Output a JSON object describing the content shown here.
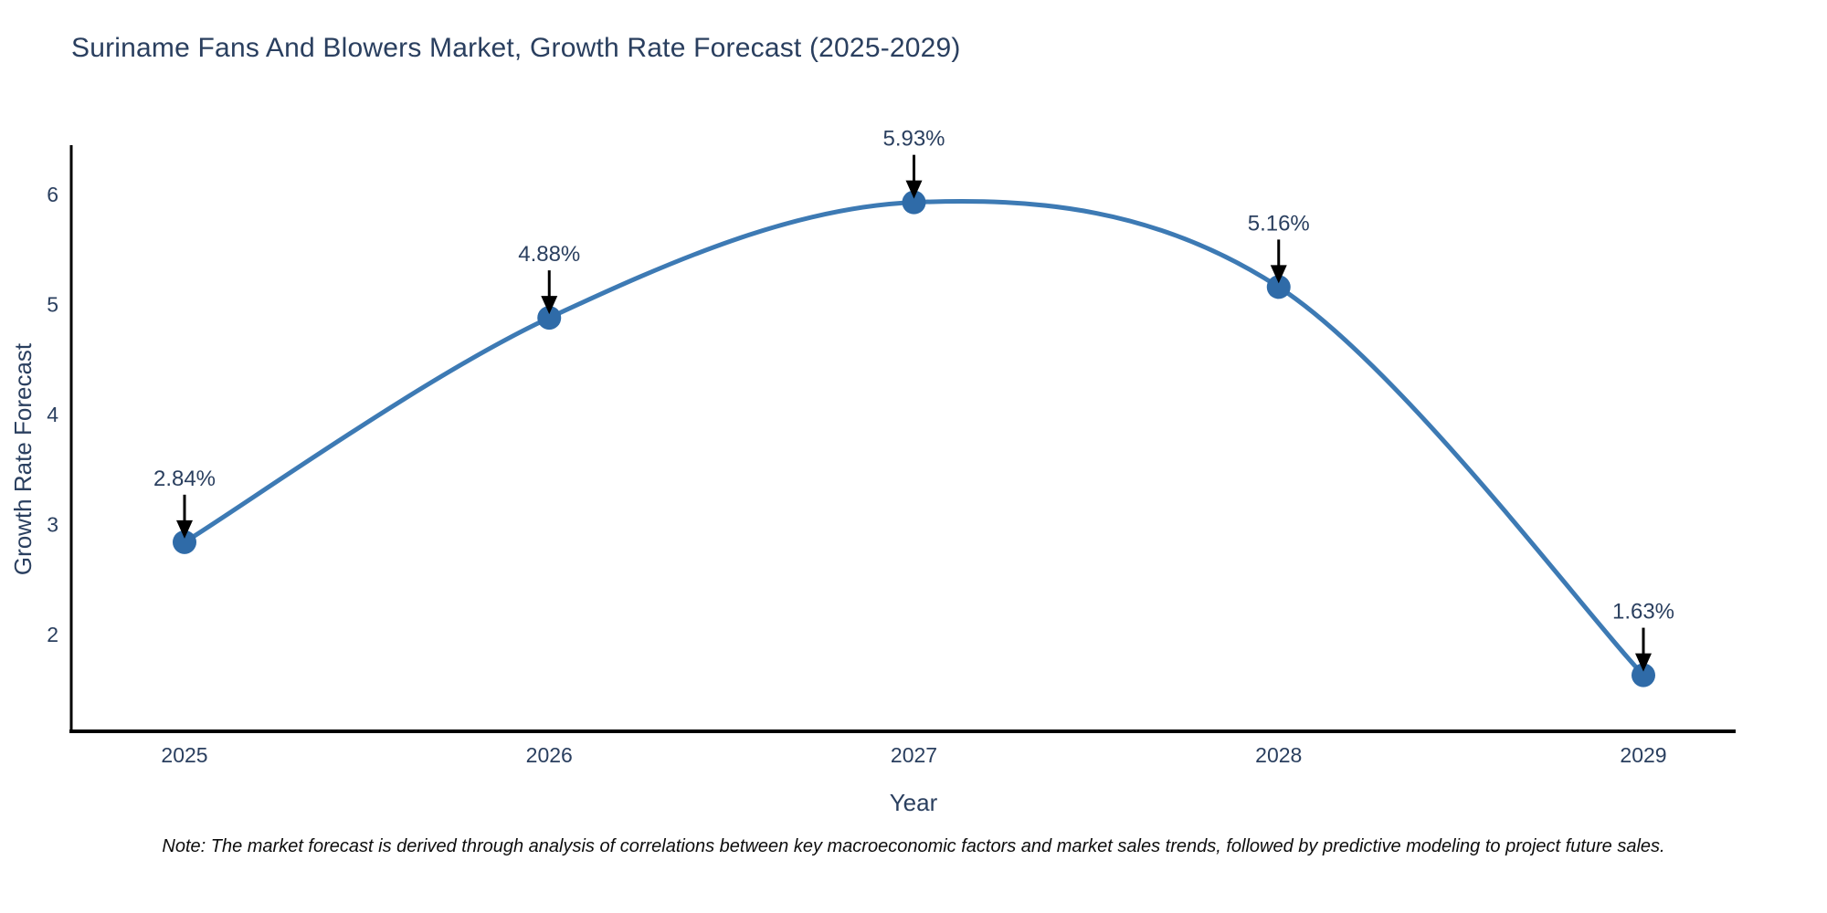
{
  "header": {
    "title": "Suriname Fans And Blowers Market, Growth Rate Forecast (2025-2029)"
  },
  "chart_data": {
    "type": "line",
    "line_shape": "spline",
    "categories": [
      "2025",
      "2026",
      "2027",
      "2028",
      "2029"
    ],
    "values": [
      2.84,
      4.88,
      5.93,
      5.16,
      1.63
    ],
    "point_labels": [
      "2.84%",
      "4.88%",
      "5.93%",
      "5.16%",
      "1.63%"
    ],
    "title": "Suriname Fans And Blowers Market, Growth Rate Forecast (2025-2029)",
    "xlabel": "Year",
    "ylabel": "Growth Rate Forecast",
    "yticks": [
      2,
      3,
      4,
      5,
      6
    ],
    "ylim": [
      1.12,
      6.45
    ],
    "grid": false,
    "legend": "none",
    "annotations": "value labels with downward arrows at each data point",
    "colors": {
      "line": "#3d7ab4",
      "marker": "#2f6ba8",
      "axis": "#000000",
      "axis_text": "#2a3f5f",
      "annotation_text": "#2a3f5f",
      "annotation_arrow": "#000000"
    }
  },
  "footer": {
    "note": "Note: The market forecast is derived through analysis of correlations between key macroeconomic factors and market sales trends, followed by predictive modeling to project future sales."
  }
}
